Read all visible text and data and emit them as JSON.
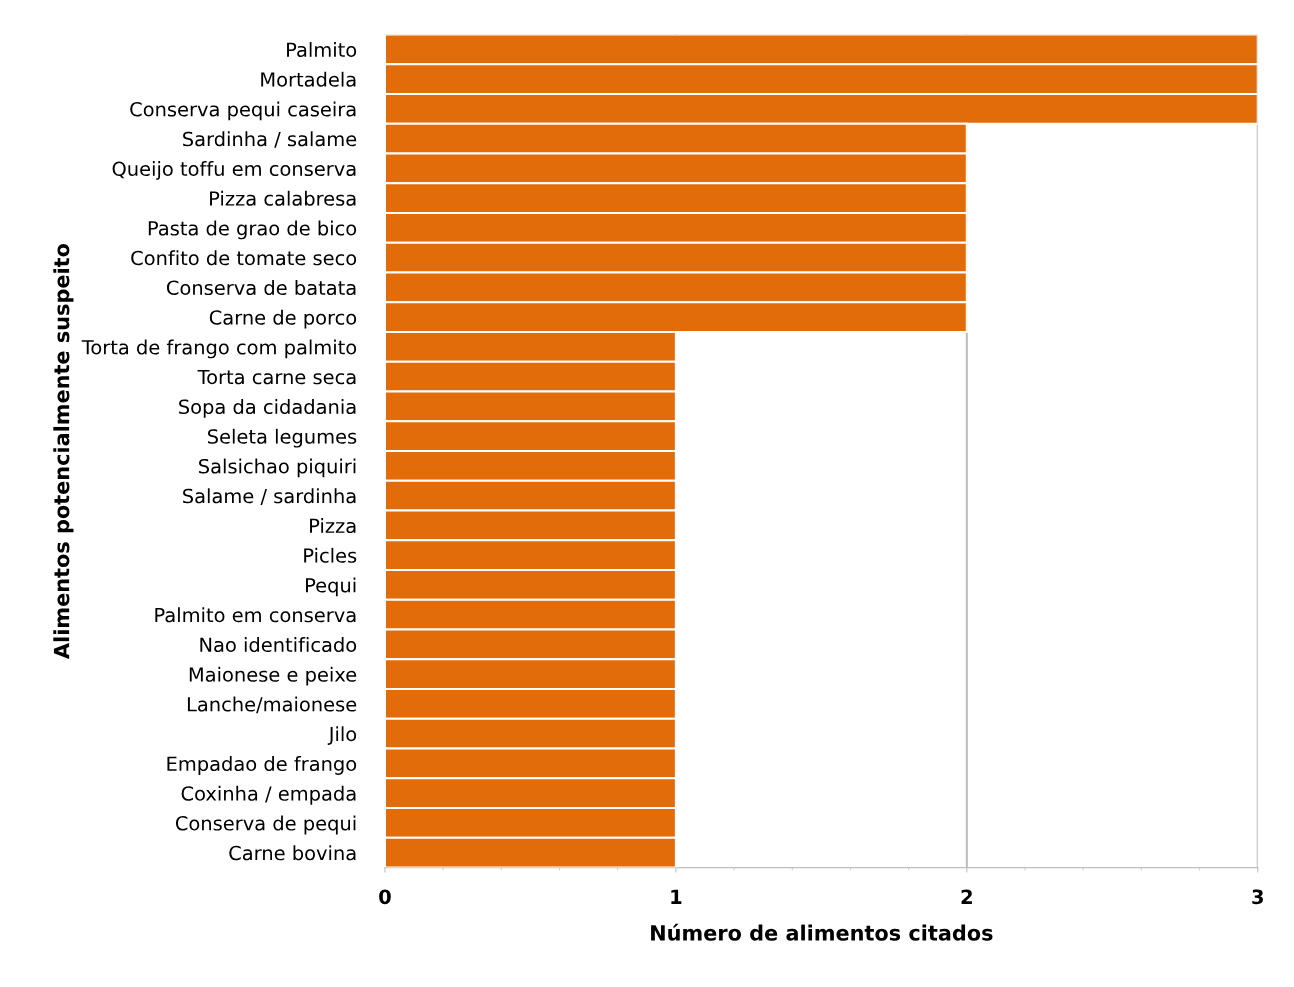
{
  "chart_data": {
    "type": "bar",
    "orientation": "horizontal",
    "xlabel": "Número de alimentos citados",
    "ylabel": "Alimentos potencialmente suspeito",
    "categories": [
      "Palmito",
      "Mortadela",
      "Conserva pequi caseira",
      "Sardinha / salame",
      "Queijo toffu em conserva",
      "Pizza calabresa",
      "Pasta de grao de bico",
      "Confito de tomate seco",
      "Conserva de batata",
      "Carne de porco",
      "Torta de frango com palmito",
      "Torta carne seca",
      "Sopa da cidadania",
      "Seleta legumes",
      "Salsichao piquiri",
      "Salame / sardinha",
      "Pizza",
      "Picles",
      "Pequi",
      "Palmito em conserva",
      "Nao identificado",
      "Maionese e peixe",
      "Lanche/maionese",
      "Jilo",
      "Empadao de frango",
      "Coxinha / empada",
      "Conserva de pequi",
      "Carne bovina"
    ],
    "values": [
      3,
      3,
      3,
      2,
      2,
      2,
      2,
      2,
      2,
      2,
      1,
      1,
      1,
      1,
      1,
      1,
      1,
      1,
      1,
      1,
      1,
      1,
      1,
      1,
      1,
      1,
      1,
      1
    ],
    "color": "#e36c0a",
    "xlim": [
      0,
      3
    ],
    "xticks": [
      0,
      1,
      2,
      3
    ],
    "grid": "x"
  }
}
